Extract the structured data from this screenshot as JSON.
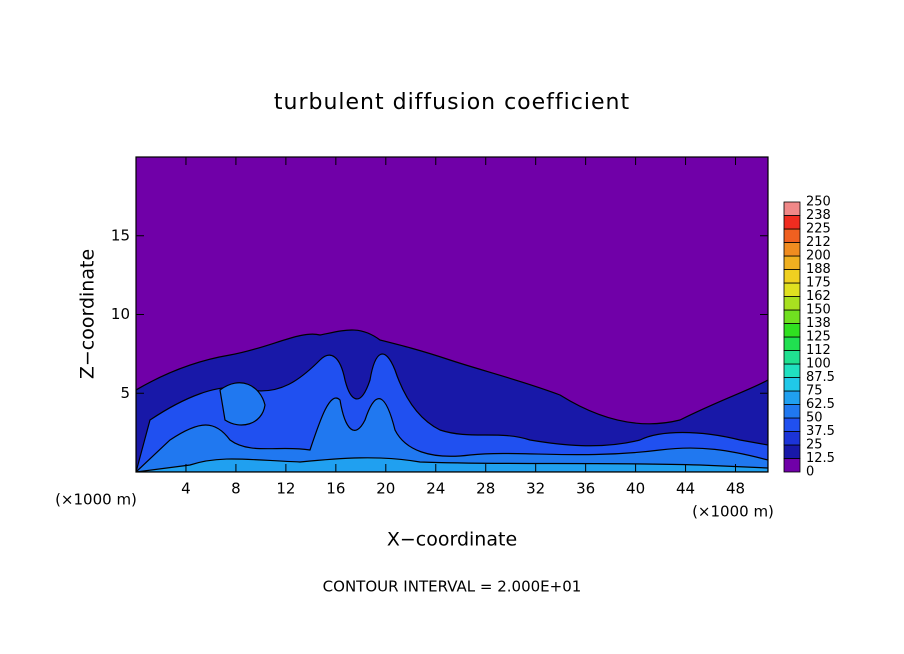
{
  "chart_data": {
    "type": "contour",
    "title": "turbulent diffusion coefficient",
    "xlabel": "X−coordinate",
    "ylabel": "Z−coordinate",
    "x_unit_left": "(×1000 m)",
    "x_unit_right": "(×1000 m)",
    "footnote": "CONTOUR INTERVAL = 2.000E+01",
    "xlim": [
      0,
      50.6
    ],
    "xticks": [
      4,
      8,
      12,
      16,
      20,
      24,
      28,
      32,
      36,
      40,
      44,
      48
    ],
    "ylim": [
      0,
      20
    ],
    "yticks": [
      5,
      10,
      15
    ],
    "background_color": "#7000a8",
    "colorbar": {
      "ticks": [
        0,
        12.5,
        25,
        37.5,
        50,
        62.5,
        75,
        87.5,
        100,
        {
          "value": 112.5,
          "label": "112"
        },
        125,
        {
          "value": 137.5,
          "label": "138"
        },
        150,
        {
          "value": 162.5,
          "label": "162"
        },
        175,
        {
          "value": 187.5,
          "label": "188"
        },
        200,
        {
          "value": 212.5,
          "label": "212"
        },
        225,
        {
          "value": 237.5,
          "label": "238"
        },
        250
      ],
      "colors": [
        "#7000a8",
        "#1818a8",
        "#1c34d8",
        "#2050f0",
        "#2078f0",
        "#20a0f0",
        "#20c8e8",
        "#20e0c0",
        "#20e090",
        "#20e050",
        "#30e020",
        "#70e020",
        "#a8e020",
        "#e0e020",
        "#f0d020",
        "#f0b020",
        "#f08c20",
        "#f06020",
        "#f02c20",
        "#f08888"
      ]
    }
  }
}
